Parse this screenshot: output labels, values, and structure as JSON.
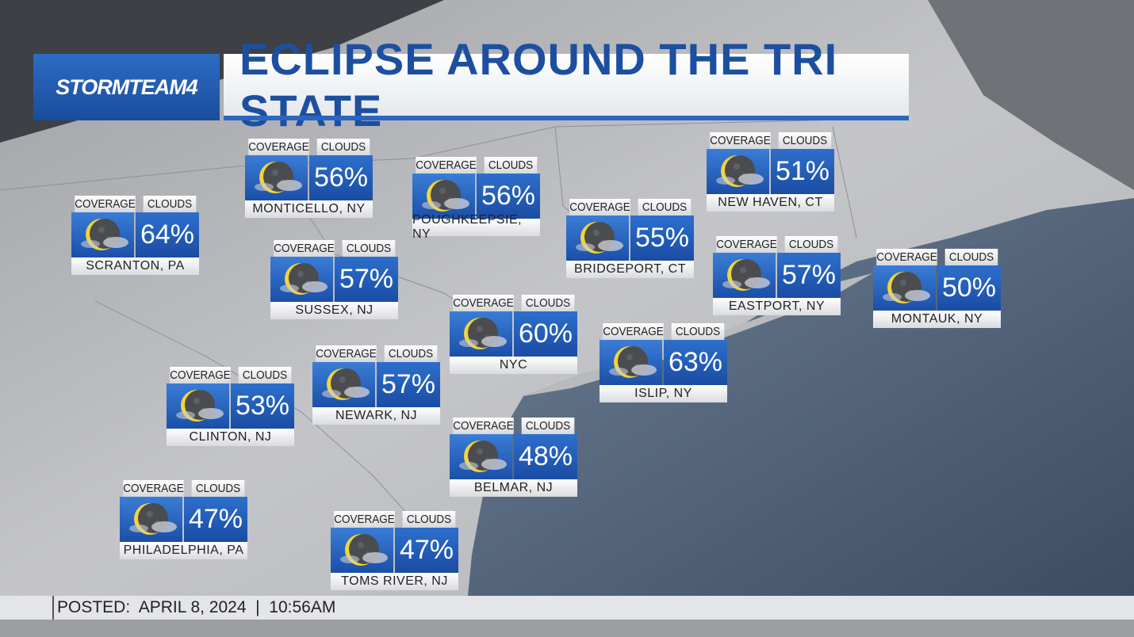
{
  "header": {
    "brand": "STORMTEAM4",
    "title": "ECLIPSE AROUND THE TRI STATE"
  },
  "labels": {
    "coverage": "COVERAGE",
    "clouds": "CLOUDS"
  },
  "locations": [
    {
      "name": "SCRANTON, PA",
      "clouds": "64%"
    },
    {
      "name": "MONTICELLO, NY",
      "clouds": "56%"
    },
    {
      "name": "POUGHKEEPSIE, NY",
      "clouds": "56%"
    },
    {
      "name": "SUSSEX, NJ",
      "clouds": "57%"
    },
    {
      "name": "BRIDGEPORT, CT",
      "clouds": "55%"
    },
    {
      "name": "NEW HAVEN, CT",
      "clouds": "51%"
    },
    {
      "name": "EASTPORT, NY",
      "clouds": "57%"
    },
    {
      "name": "MONTAUK, NY",
      "clouds": "50%"
    },
    {
      "name": "NYC",
      "clouds": "60%"
    },
    {
      "name": "ISLIP, NY",
      "clouds": "63%"
    },
    {
      "name": "NEWARK, NJ",
      "clouds": "57%"
    },
    {
      "name": "CLINTON, NJ",
      "clouds": "53%"
    },
    {
      "name": "BELMAR, NJ",
      "clouds": "48%"
    },
    {
      "name": "PHILADELPHIA, PA",
      "clouds": "47%"
    },
    {
      "name": "TOMS RIVER, NJ",
      "clouds": "47%"
    }
  ],
  "footer": {
    "posted": "POSTED:  APRIL 8, 2024  |  10:56AM"
  }
}
